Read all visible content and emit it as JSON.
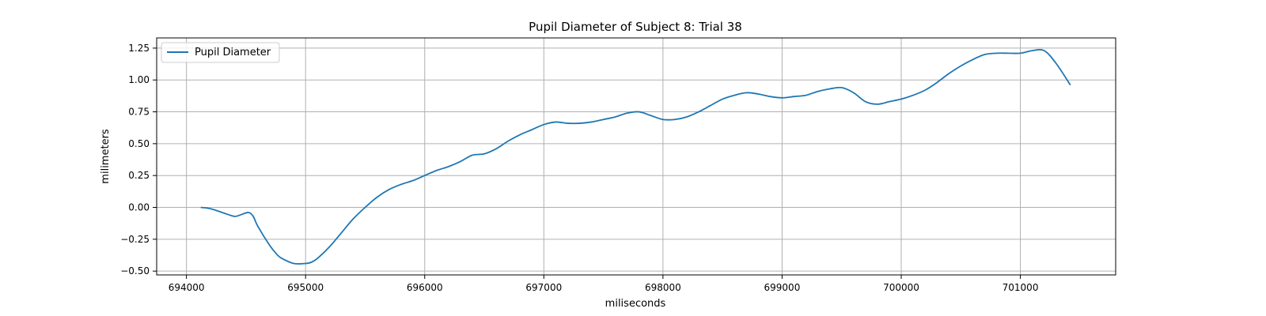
{
  "chart_data": {
    "type": "line",
    "title": "Pupil Diameter of Subject 8: Trial 38",
    "xlabel": "miliseconds",
    "ylabel": "milimeters",
    "xlim": [
      693750,
      701800
    ],
    "ylim": [
      -0.53,
      1.33
    ],
    "xticks": [
      694000,
      695000,
      696000,
      697000,
      698000,
      699000,
      700000,
      701000
    ],
    "yticks": [
      -0.5,
      -0.25,
      0.0,
      0.25,
      0.5,
      0.75,
      1.0,
      1.25
    ],
    "ytick_labels": [
      "−0.50",
      "−0.25",
      "0.00",
      "0.25",
      "0.50",
      "0.75",
      "1.00",
      "1.25"
    ],
    "grid": true,
    "legend_position": "top-left",
    "series": [
      {
        "name": "Pupil Diameter",
        "color": "#1f77b4",
        "x": [
          694120,
          694200,
          694300,
          694400,
          694450,
          694520,
          694560,
          694600,
          694700,
          694760,
          694800,
          694900,
          695000,
          695050,
          695100,
          695200,
          695300,
          695400,
          695500,
          695600,
          695700,
          695800,
          695900,
          696000,
          696100,
          696200,
          696300,
          696400,
          696500,
          696600,
          696700,
          696800,
          696900,
          697000,
          697100,
          697200,
          697300,
          697400,
          697500,
          697600,
          697700,
          697800,
          697900,
          698000,
          698100,
          698200,
          698300,
          698400,
          698500,
          698600,
          698700,
          698800,
          698900,
          699000,
          699100,
          699200,
          699300,
          699400,
          699500,
          699600,
          699700,
          699800,
          699900,
          700000,
          700100,
          700200,
          700300,
          700400,
          700500,
          700600,
          700700,
          700800,
          700900,
          701000,
          701100,
          701200,
          701300,
          701420
        ],
        "y": [
          0.0,
          -0.01,
          -0.04,
          -0.07,
          -0.06,
          -0.04,
          -0.07,
          -0.15,
          -0.3,
          -0.37,
          -0.4,
          -0.44,
          -0.44,
          -0.43,
          -0.4,
          -0.31,
          -0.2,
          -0.09,
          0.0,
          0.08,
          0.14,
          0.18,
          0.21,
          0.25,
          0.29,
          0.32,
          0.36,
          0.41,
          0.42,
          0.46,
          0.52,
          0.57,
          0.61,
          0.65,
          0.67,
          0.66,
          0.66,
          0.67,
          0.69,
          0.71,
          0.74,
          0.75,
          0.72,
          0.69,
          0.69,
          0.71,
          0.75,
          0.8,
          0.85,
          0.88,
          0.9,
          0.89,
          0.87,
          0.86,
          0.87,
          0.88,
          0.91,
          0.93,
          0.94,
          0.9,
          0.83,
          0.81,
          0.83,
          0.85,
          0.88,
          0.92,
          0.98,
          1.05,
          1.11,
          1.16,
          1.2,
          1.21,
          1.21,
          1.21,
          1.23,
          1.23,
          1.13,
          0.96
        ]
      }
    ]
  }
}
